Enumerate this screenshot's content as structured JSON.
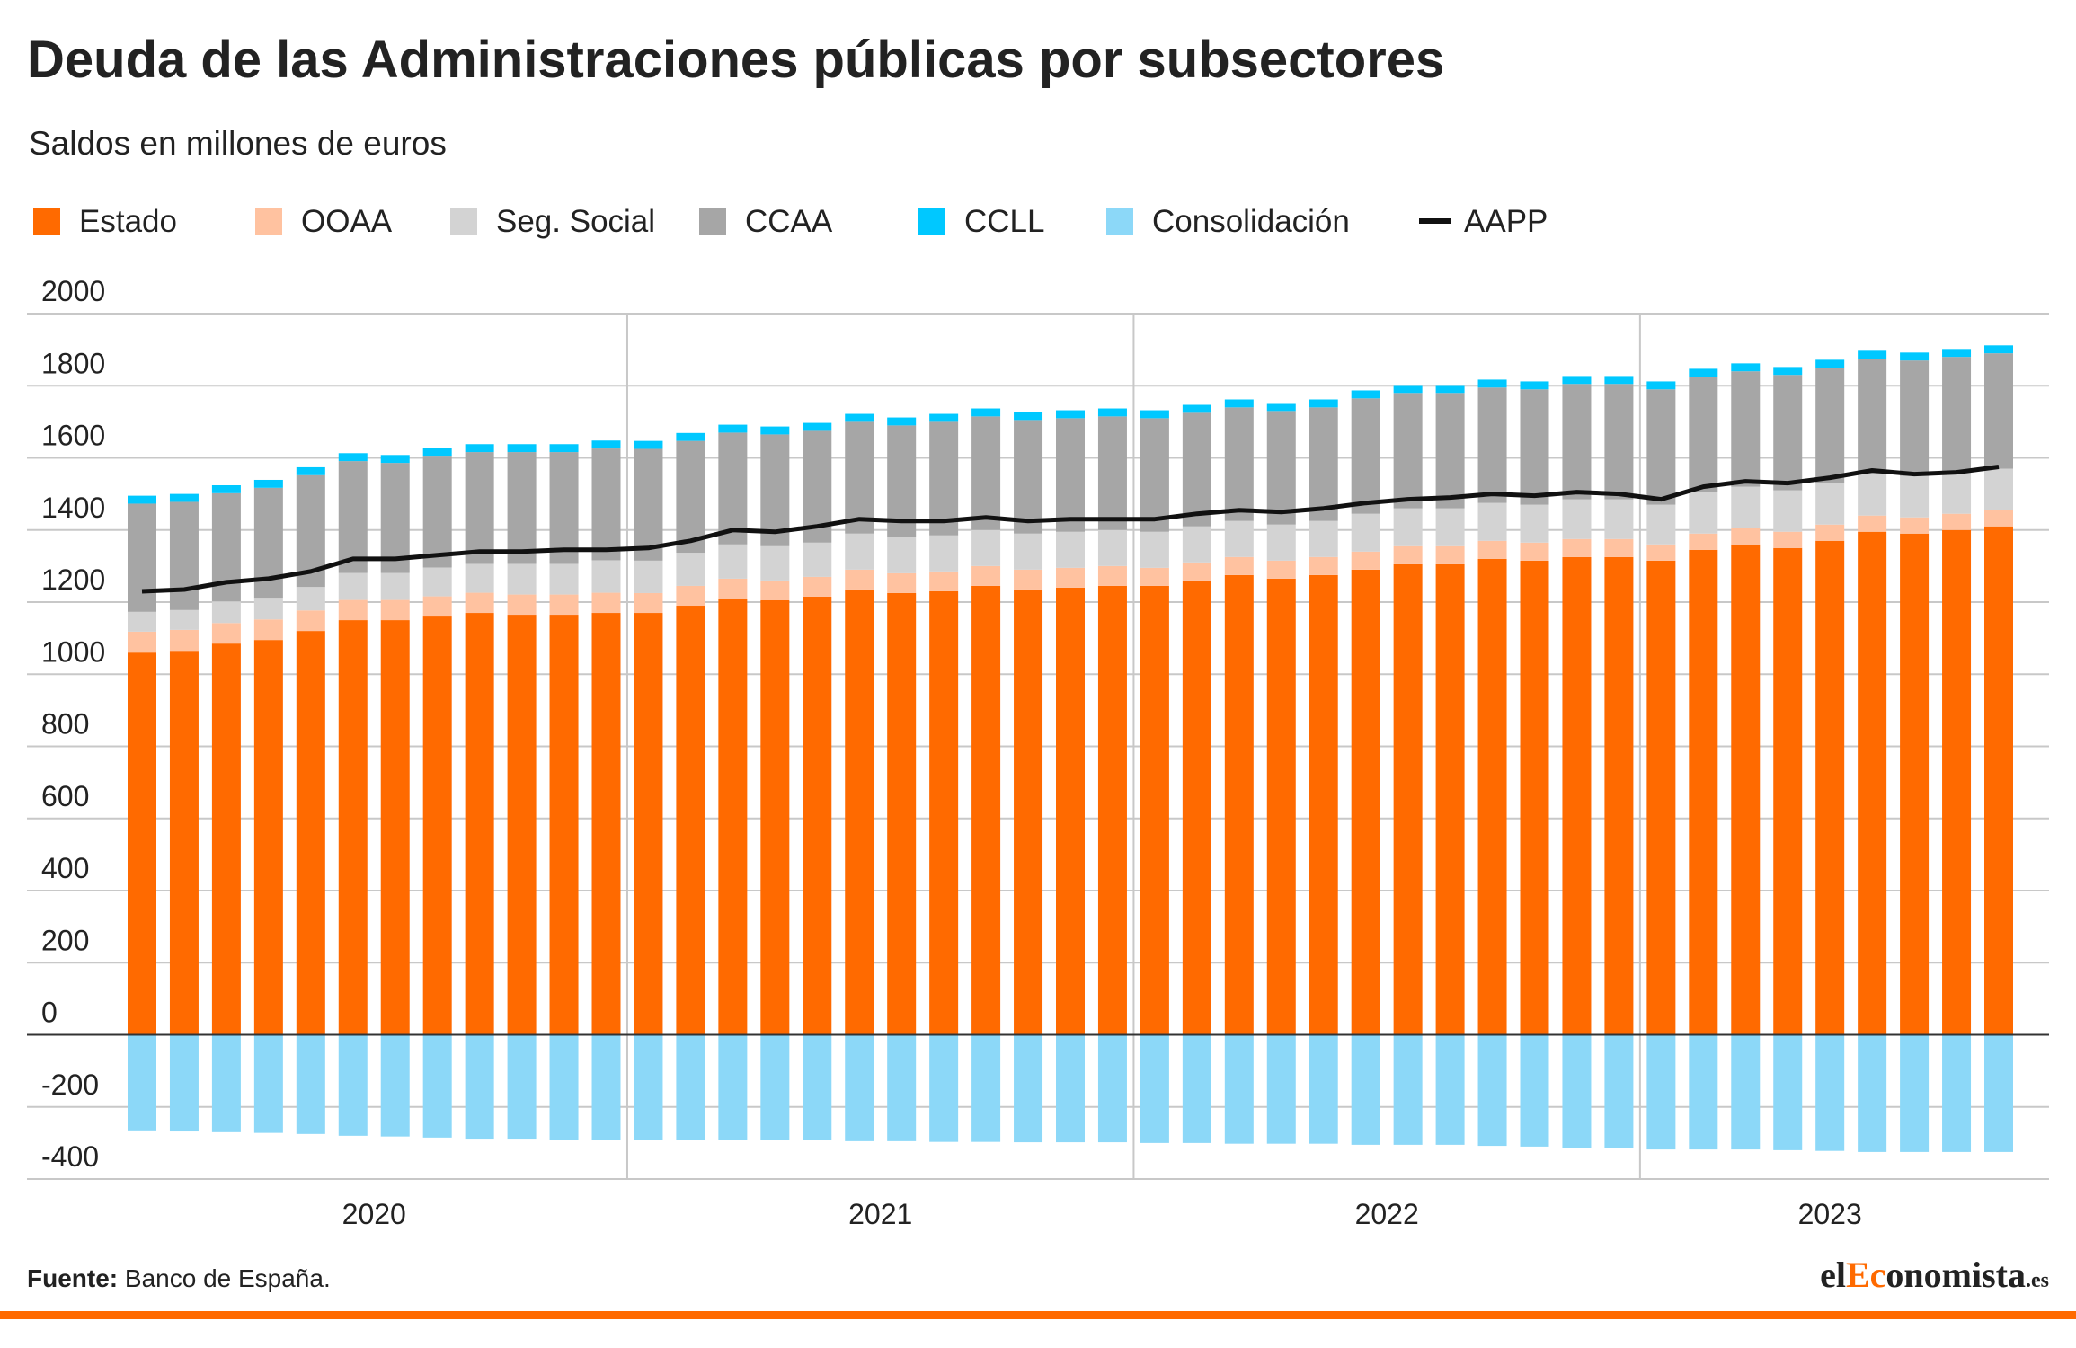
{
  "chart_data": {
    "type": "bar",
    "title": "Deuda de las Administraciones públicas por subsectores",
    "subtitle": "Saldos en millones de euros",
    "categories": [
      null,
      null,
      null,
      null,
      null,
      null,
      null,
      null,
      null,
      null,
      null,
      null,
      null,
      null,
      null,
      null,
      null,
      null,
      null,
      null,
      null,
      null,
      null,
      null,
      null,
      null,
      null,
      null,
      null,
      null,
      null,
      null,
      null,
      null,
      null,
      null,
      null,
      null,
      null,
      null,
      null,
      null,
      null,
      null,
      null
    ],
    "year_groups": [
      {
        "label": "2020",
        "count": 12
      },
      {
        "label": "2021",
        "count": 12
      },
      {
        "label": "2022",
        "count": 12
      },
      {
        "label": "2023",
        "count": 9
      }
    ],
    "series": [
      {
        "name": "Estado",
        "color": "#ff6a00",
        "values": [
          1060,
          1065,
          1085,
          1095,
          1120,
          1150,
          1150,
          1160,
          1170,
          1165,
          1165,
          1170,
          1170,
          1190,
          1210,
          1205,
          1215,
          1235,
          1225,
          1230,
          1245,
          1235,
          1240,
          1245,
          1245,
          1260,
          1275,
          1265,
          1275,
          1290,
          1305,
          1305,
          1320,
          1315,
          1325,
          1325,
          1315,
          1345,
          1360,
          1350,
          1370,
          1395,
          1390,
          1400,
          1410
        ]
      },
      {
        "name": "OOAA",
        "color": "#ffc2a0",
        "values": [
          58,
          58,
          57,
          57,
          57,
          56,
          56,
          56,
          56,
          56,
          56,
          56,
          55,
          55,
          55,
          55,
          55,
          55,
          55,
          55,
          55,
          55,
          55,
          55,
          50,
          50,
          50,
          50,
          50,
          50,
          50,
          50,
          50,
          50,
          50,
          50,
          45,
          45,
          45,
          45,
          45,
          45,
          45,
          45,
          45
        ]
      },
      {
        "name": "Seg. Social",
        "color": "#d3d3d3",
        "values": [
          55,
          55,
          60,
          60,
          65,
          75,
          75,
          80,
          80,
          85,
          85,
          90,
          90,
          92,
          95,
          95,
          95,
          100,
          100,
          100,
          100,
          100,
          100,
          100,
          100,
          100,
          100,
          100,
          100,
          105,
          105,
          105,
          105,
          105,
          110,
          110,
          110,
          115,
          115,
          115,
          115,
          115,
          115,
          115,
          115
        ]
      },
      {
        "name": "CCAA",
        "color": "#a6a6a6",
        "values": [
          300,
          300,
          300,
          305,
          310,
          310,
          305,
          310,
          310,
          310,
          310,
          310,
          310,
          310,
          310,
          310,
          310,
          310,
          310,
          315,
          315,
          315,
          315,
          315,
          315,
          315,
          315,
          315,
          315,
          320,
          320,
          320,
          320,
          320,
          320,
          320,
          320,
          320,
          320,
          320,
          320,
          320,
          320,
          320,
          320
        ]
      },
      {
        "name": "CCLL",
        "color": "#00c8ff",
        "values": [
          22,
          22,
          22,
          22,
          22,
          22,
          22,
          22,
          22,
          22,
          22,
          22,
          22,
          22,
          22,
          22,
          22,
          22,
          22,
          22,
          22,
          22,
          22,
          22,
          22,
          22,
          22,
          22,
          22,
          22,
          22,
          22,
          22,
          22,
          22,
          22,
          22,
          22,
          22,
          22,
          22,
          22,
          22,
          22,
          22
        ]
      },
      {
        "name": "Consolidación",
        "color": "#8cd8f8",
        "values": [
          -265,
          -268,
          -270,
          -272,
          -275,
          -280,
          -282,
          -285,
          -288,
          -288,
          -292,
          -292,
          -292,
          -292,
          -292,
          -292,
          -292,
          -295,
          -295,
          -297,
          -297,
          -298,
          -298,
          -298,
          -300,
          -300,
          -302,
          -302,
          -302,
          -305,
          -305,
          -305,
          -308,
          -310,
          -315,
          -315,
          -318,
          -318,
          -318,
          -320,
          -322,
          -325,
          -325,
          -325,
          -325
        ]
      },
      {
        "name": "AAPP",
        "color": "#111111",
        "type": "line",
        "values": [
          1230,
          1235,
          1255,
          1265,
          1285,
          1320,
          1320,
          1330,
          1340,
          1340,
          1345,
          1345,
          1350,
          1370,
          1400,
          1395,
          1410,
          1430,
          1425,
          1425,
          1435,
          1425,
          1430,
          1430,
          1430,
          1445,
          1455,
          1450,
          1460,
          1475,
          1485,
          1490,
          1500,
          1495,
          1505,
          1500,
          1485,
          1520,
          1535,
          1530,
          1545,
          1565,
          1555,
          1560,
          1575
        ]
      }
    ],
    "ylim": [
      -400,
      2000
    ],
    "yticks": [
      2000,
      1800,
      1600,
      1400,
      1200,
      1000,
      800,
      600,
      400,
      200,
      0,
      -200,
      -400
    ],
    "grid": true,
    "source_label": "Fuente:",
    "source": "Banco de España.",
    "logo": [
      "el",
      "Ec",
      "onomista",
      ".es"
    ]
  }
}
